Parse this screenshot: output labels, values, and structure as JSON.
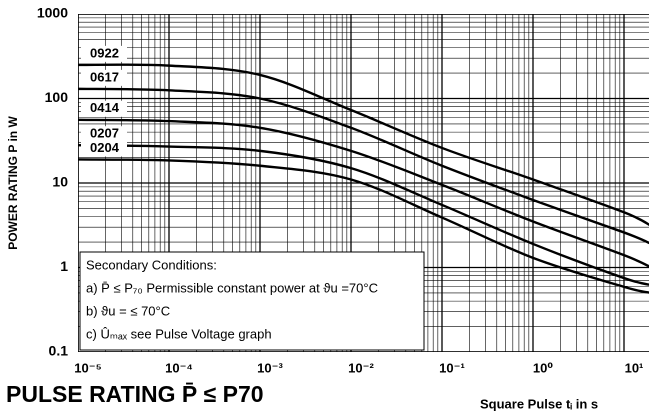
{
  "chart_data": {
    "type": "line",
    "title": "PULSE RATING P̄ ≤ P70",
    "y_label": "POWER RATING P in W",
    "x_label": "Square Pulse  tᵢ in s",
    "log_x": true,
    "log_y": true,
    "grid": true,
    "color": "#000000",
    "x": [
      1e-05,
      0.0001,
      0.001,
      0.01,
      0.1,
      1,
      10,
      20
    ],
    "series": [
      {
        "name": "0922",
        "color": "#000000",
        "values": [
          250,
          245,
          190,
          73,
          26,
          11,
          4.5,
          3.1
        ]
      },
      {
        "name": "0617",
        "color": "#000000",
        "values": [
          130,
          125,
          100,
          45,
          16,
          6.3,
          2.6,
          1.9
        ]
      },
      {
        "name": "0414",
        "color": "#000000",
        "values": [
          56,
          54,
          45,
          24,
          9.5,
          3.5,
          1.4,
          1.0
        ]
      },
      {
        "name": "0207",
        "color": "#000000",
        "values": [
          28,
          27,
          24,
          15,
          5.5,
          1.9,
          0.75,
          0.62
        ]
      },
      {
        "name": "0204",
        "color": "#000000",
        "values": [
          19,
          18.5,
          16,
          11,
          3.9,
          1.3,
          0.59,
          0.5
        ]
      }
    ],
    "xlim": [
      1e-05,
      20
    ],
    "ylim": [
      0.1,
      1000
    ],
    "xticks": [
      {
        "value": 1e-05,
        "label": "10⁻⁵"
      },
      {
        "value": 0.0001,
        "label": "10⁻⁴"
      },
      {
        "value": 0.001,
        "label": "10⁻³"
      },
      {
        "value": 0.01,
        "label": "10⁻²"
      },
      {
        "value": 0.1,
        "label": "10⁻¹"
      },
      {
        "value": 1,
        "label": "10⁰"
      },
      {
        "value": 10,
        "label": "10¹"
      }
    ],
    "yticks": [
      0.1,
      1,
      10,
      100,
      1000
    ],
    "annotation": [
      "Secondary Conditions:",
      "a) P̄ ≤ P₇₀ Permissible constant power at ϑu =70°C",
      "b) ϑu = ≤ 70°C",
      "c) Ûₘₐₓ see Pulse Voltage  graph"
    ]
  }
}
